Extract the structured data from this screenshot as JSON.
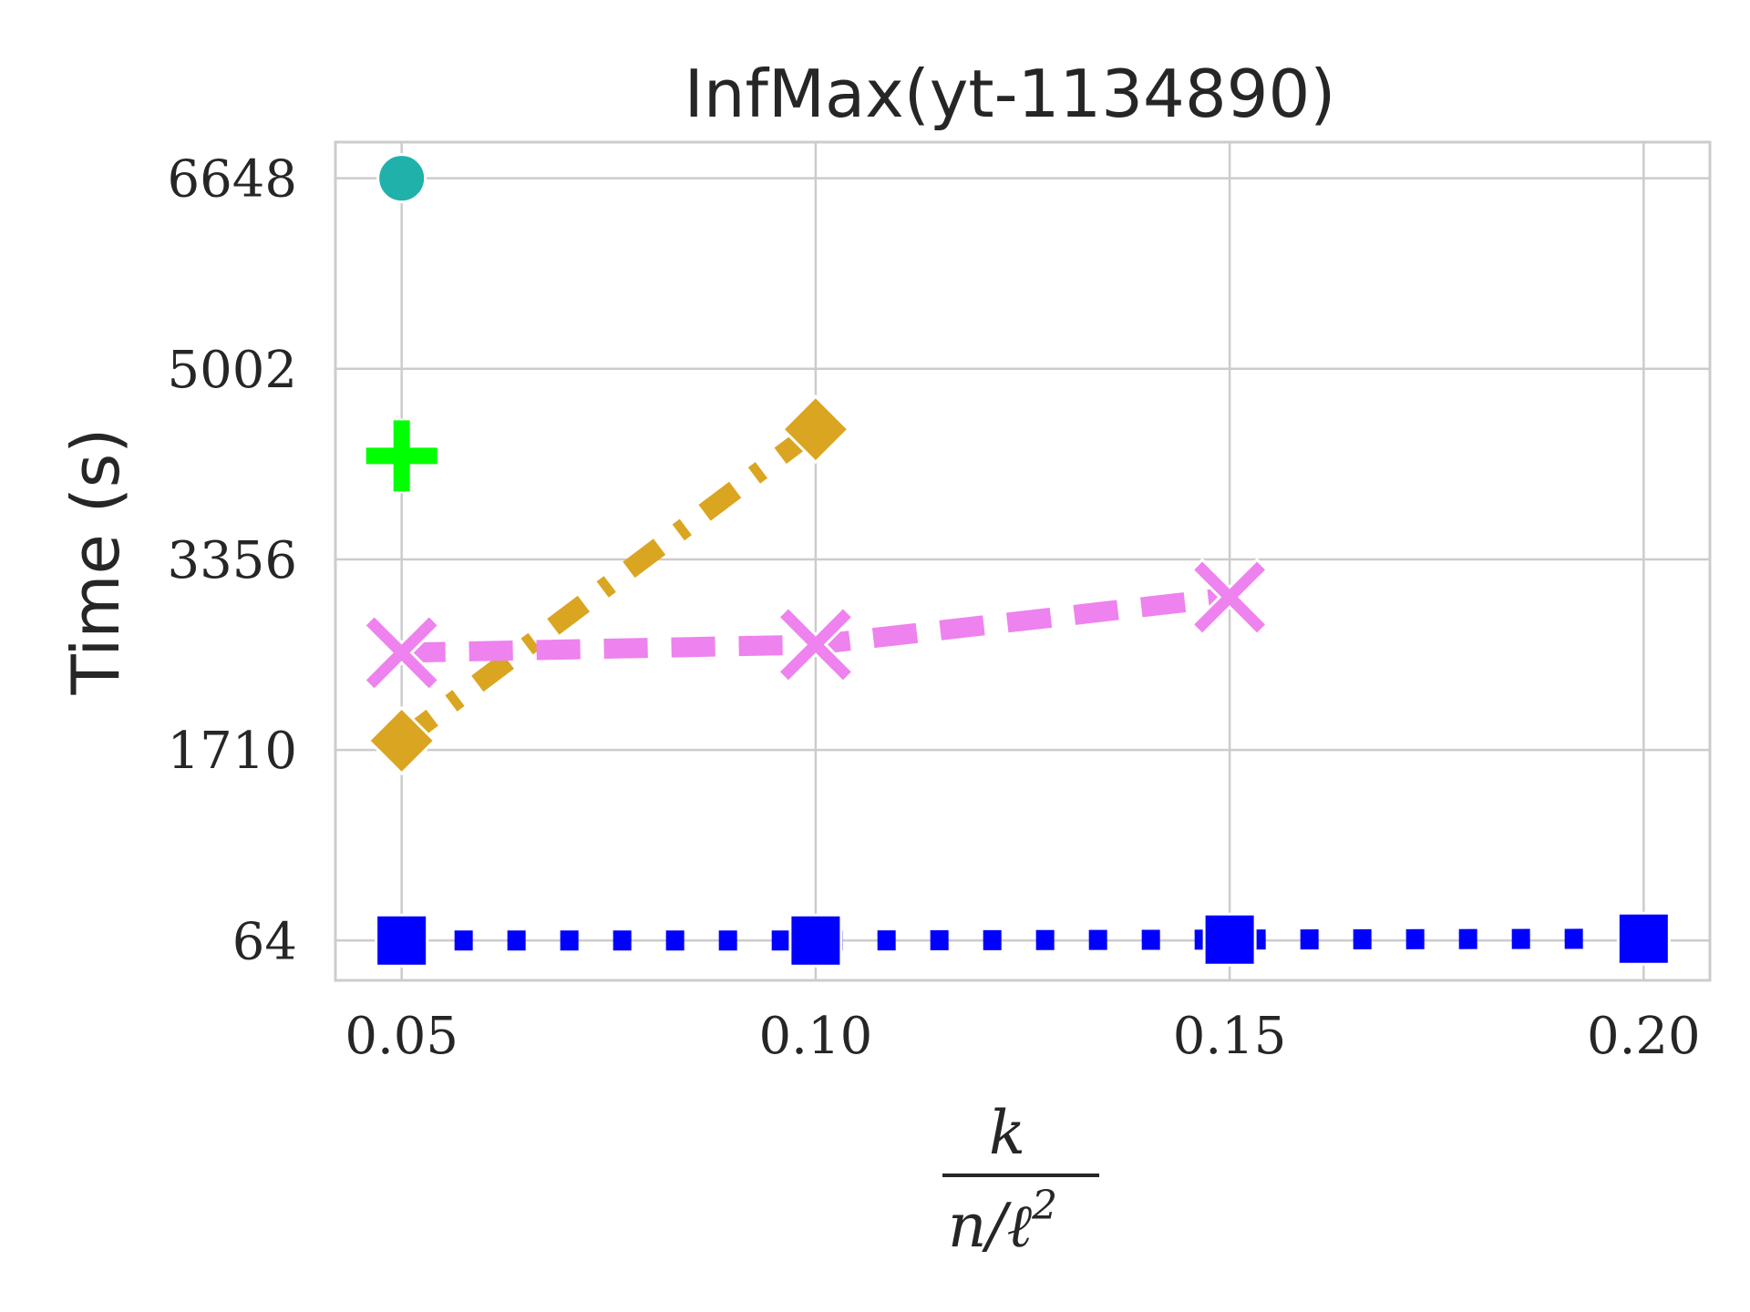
{
  "chart_data": {
    "type": "line",
    "title": "InfMax(yt-1134890)",
    "ylabel": "Time (s)",
    "xlabel": {
      "numerator": "k",
      "denominator_base": "n/ℓ",
      "denominator_exponent": "2"
    },
    "x_ticks": [
      "0.05",
      "0.10",
      "0.15",
      "0.20"
    ],
    "x_tick_values": [
      0.05,
      0.1,
      0.15,
      0.2
    ],
    "y_ticks": [
      "64",
      "1710",
      "3356",
      "5002",
      "6648"
    ],
    "y_tick_values": [
      64,
      1710,
      3356,
      5002,
      6648
    ],
    "xlim": [
      0.042,
      0.208
    ],
    "ylim": [
      -280,
      6960
    ],
    "grid": true,
    "series": [
      {
        "x": [
          0.05
        ],
        "y": [
          6648
        ],
        "color": "#20b2aa",
        "marker": "circle",
        "line": "none"
      },
      {
        "x": [
          0.05
        ],
        "y": [
          4250
        ],
        "color": "#00ff00",
        "marker": "plus",
        "line": "none"
      },
      {
        "x": [
          0.05,
          0.1
        ],
        "y": [
          1790,
          4480
        ],
        "color": "#daa520",
        "marker": "diamond",
        "line": "dashdot"
      },
      {
        "x": [
          0.05,
          0.1,
          0.15
        ],
        "y": [
          2550,
          2620,
          3030
        ],
        "color": "#ee82ee",
        "marker": "x",
        "line": "dashed"
      },
      {
        "x": [
          0.05,
          0.1,
          0.15,
          0.2
        ],
        "y": [
          64,
          64,
          72,
          80
        ],
        "color": "#0000ff",
        "marker": "square",
        "line": "dotted"
      }
    ]
  }
}
